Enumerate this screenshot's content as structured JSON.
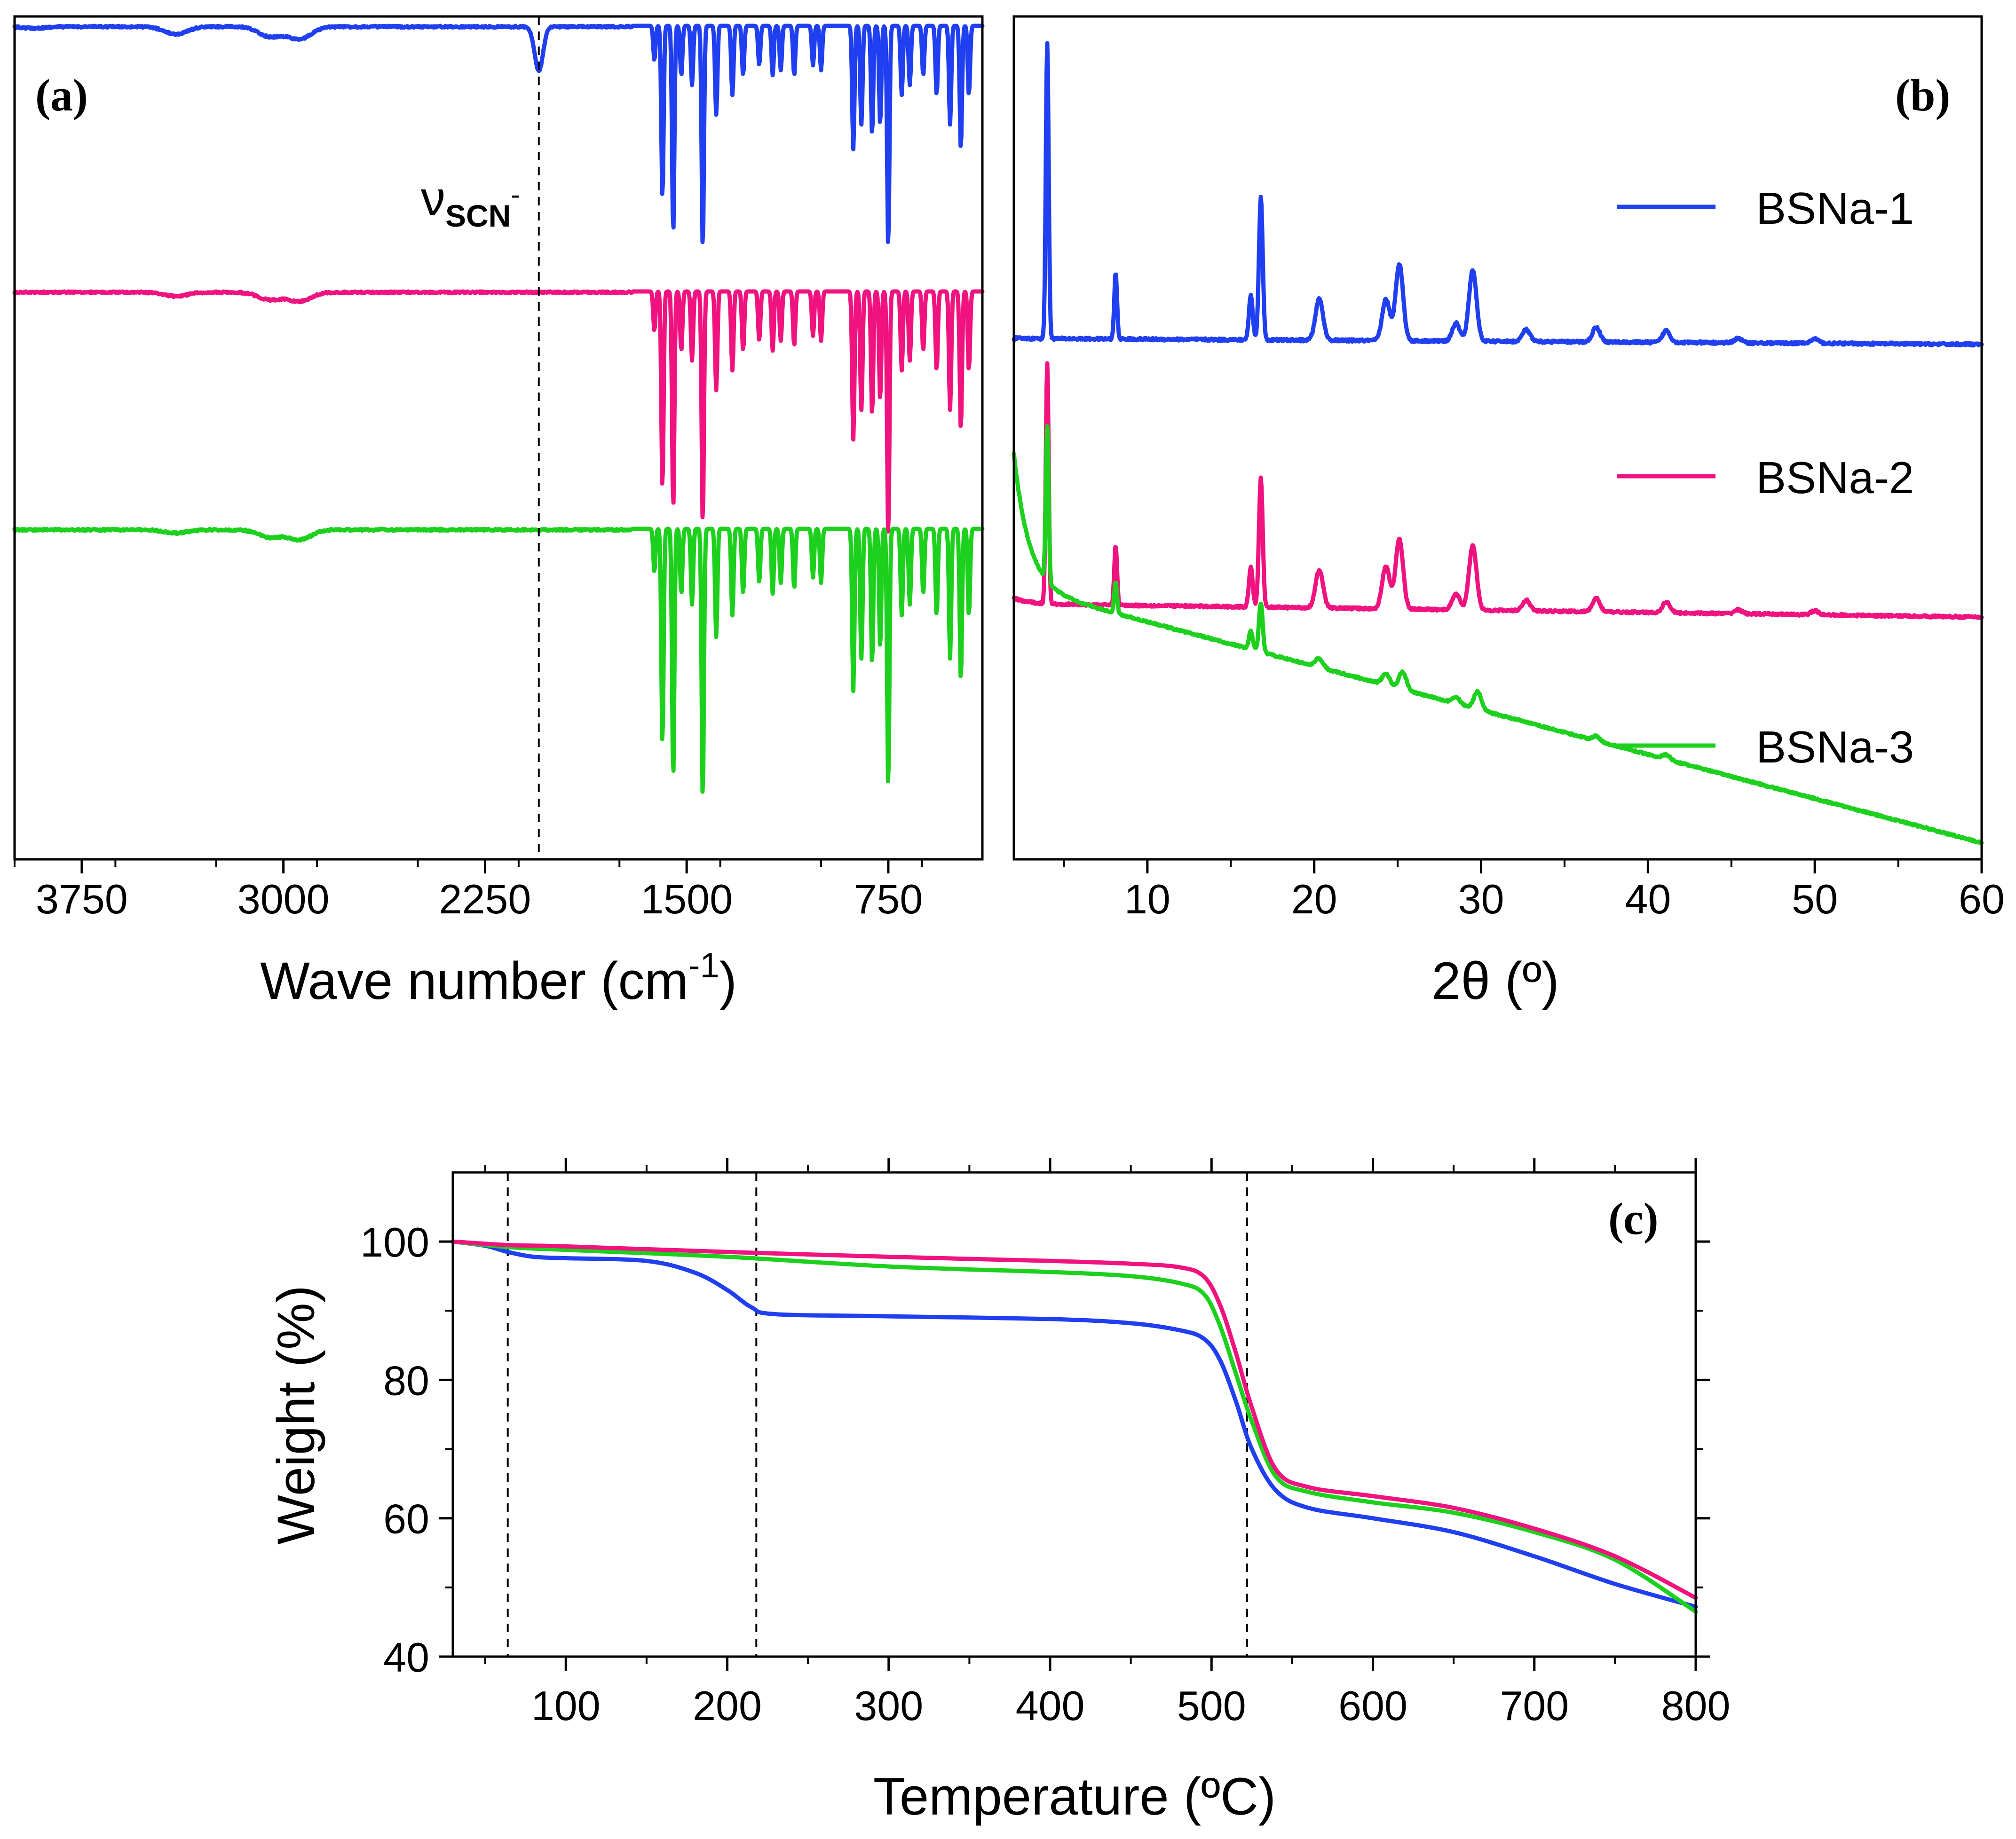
{
  "colors": {
    "BSNa-1": "#1f3ff0",
    "BSNa-2": "#f0137f",
    "BSNa-3": "#1ed01e"
  },
  "chart_data": [
    {
      "id": "a",
      "type": "line",
      "panel_label": "(a)",
      "xlabel_main": "Wave number (cm",
      "xlabel_sup": "-1",
      "xlabel_close": ")",
      "ylabel": "",
      "x_direction": "reversed",
      "xlim": [
        4000,
        400
      ],
      "xticks": [
        "3750",
        "3000",
        "2250",
        "1500",
        "750"
      ],
      "xtick_values": [
        3750,
        3000,
        2250,
        1500,
        750
      ],
      "annotation": {
        "base": "ν",
        "sub": "SCN",
        "sup": "-",
        "at_x": 2050
      },
      "guide_x": [
        2050
      ],
      "y_units": "arbitrary transmittance (stacked, offset)",
      "series": [
        {
          "name": "BSNa-1",
          "color_key": "BSNa-1",
          "baseline": 100,
          "bands": [
            [
              3930,
              0.3
            ],
            [
              3400,
              1.5
            ],
            [
              3050,
              2.0
            ],
            [
              2940,
              2.5
            ],
            [
              2050,
              9
            ],
            [
              1620,
              7
            ],
            [
              1590,
              35
            ],
            [
              1550,
              42
            ],
            [
              1520,
              10
            ],
            [
              1480,
              12
            ],
            [
              1440,
              45
            ],
            [
              1390,
              18
            ],
            [
              1330,
              14
            ],
            [
              1290,
              10
            ],
            [
              1230,
              8
            ],
            [
              1180,
              10
            ],
            [
              1150,
              9
            ],
            [
              1100,
              10
            ],
            [
              1030,
              8
            ],
            [
              1000,
              9
            ],
            [
              880,
              25
            ],
            [
              850,
              20
            ],
            [
              810,
              22
            ],
            [
              780,
              20
            ],
            [
              750,
              45
            ],
            [
              700,
              14
            ],
            [
              670,
              12
            ],
            [
              620,
              10
            ],
            [
              570,
              14
            ],
            [
              520,
              20
            ],
            [
              480,
              25
            ],
            [
              450,
              14
            ]
          ]
        },
        {
          "name": "BSNa-2",
          "color_key": "BSNa-2",
          "baseline": 100,
          "bands": [
            [
              3400,
              0.8
            ],
            [
              3050,
              1.5
            ],
            [
              2940,
              1.8
            ],
            [
              1620,
              8
            ],
            [
              1590,
              40
            ],
            [
              1550,
              44
            ],
            [
              1520,
              12
            ],
            [
              1480,
              14
            ],
            [
              1440,
              47
            ],
            [
              1390,
              20
            ],
            [
              1330,
              16
            ],
            [
              1290,
              12
            ],
            [
              1230,
              10
            ],
            [
              1180,
              12
            ],
            [
              1150,
              10
            ],
            [
              1100,
              11
            ],
            [
              1030,
              9
            ],
            [
              1000,
              10
            ],
            [
              880,
              30
            ],
            [
              850,
              24
            ],
            [
              810,
              25
            ],
            [
              780,
              22
            ],
            [
              750,
              50
            ],
            [
              700,
              16
            ],
            [
              670,
              14
            ],
            [
              620,
              12
            ],
            [
              570,
              16
            ],
            [
              520,
              24
            ],
            [
              480,
              28
            ],
            [
              450,
              16
            ]
          ]
        },
        {
          "name": "BSNa-3",
          "color_key": "BSNa-3",
          "baseline": 100,
          "bands": [
            [
              3400,
              0.6
            ],
            [
              3050,
              1.4
            ],
            [
              2940,
              1.8
            ],
            [
              1620,
              8
            ],
            [
              1590,
              40
            ],
            [
              1550,
              46
            ],
            [
              1520,
              12
            ],
            [
              1480,
              14
            ],
            [
              1440,
              50
            ],
            [
              1390,
              20
            ],
            [
              1330,
              16
            ],
            [
              1290,
              12
            ],
            [
              1230,
              10
            ],
            [
              1180,
              12
            ],
            [
              1150,
              10
            ],
            [
              1100,
              11
            ],
            [
              1030,
              9
            ],
            [
              1000,
              10
            ],
            [
              880,
              30
            ],
            [
              850,
              24
            ],
            [
              810,
              25
            ],
            [
              780,
              22
            ],
            [
              750,
              48
            ],
            [
              700,
              16
            ],
            [
              670,
              14
            ],
            [
              620,
              12
            ],
            [
              570,
              16
            ],
            [
              520,
              24
            ],
            [
              480,
              28
            ],
            [
              450,
              16
            ]
          ]
        }
      ]
    },
    {
      "id": "b",
      "type": "line",
      "panel_label": "(b)",
      "xlabel": "2θ (º)",
      "ylabel": "",
      "xlim": [
        2,
        60
      ],
      "xticks": [
        "10",
        "20",
        "30",
        "40",
        "50",
        "60"
      ],
      "xtick_values": [
        10,
        20,
        30,
        40,
        50,
        60
      ],
      "y_units": "intensity (a.u., stacked, offset)",
      "legend": [
        "BSNa-1",
        "BSNa-2",
        "BSNa-3"
      ],
      "series": [
        {
          "name": "BSNa-1",
          "color_key": "BSNa-1",
          "start": 2,
          "end": 0,
          "low_angle": 0,
          "peaks": [
            [
              4.0,
              100
            ],
            [
              8.1,
              22
            ],
            [
              16.2,
              15
            ],
            [
              16.8,
              48
            ],
            [
              20.3,
              14
            ],
            [
              24.3,
              14
            ],
            [
              25.1,
              26
            ],
            [
              28.5,
              6
            ],
            [
              29.5,
              24
            ],
            [
              32.7,
              4
            ],
            [
              36.9,
              5
            ],
            [
              41.1,
              4
            ],
            [
              45.4,
              1.5
            ],
            [
              50,
              1.5
            ]
          ]
        },
        {
          "name": "BSNa-2",
          "color_key": "BSNa-2",
          "start": 5,
          "end": 0,
          "low_angle": 2,
          "peaks": [
            [
              4.0,
              90
            ],
            [
              8.1,
              22
            ],
            [
              16.2,
              15
            ],
            [
              16.8,
              48
            ],
            [
              20.3,
              14
            ],
            [
              24.3,
              16
            ],
            [
              25.1,
              26
            ],
            [
              28.5,
              6
            ],
            [
              29.5,
              24
            ],
            [
              32.7,
              4
            ],
            [
              36.9,
              5
            ],
            [
              41.1,
              4
            ],
            [
              45.4,
              1.5
            ],
            [
              50,
              1.5
            ]
          ]
        },
        {
          "name": "BSNa-3",
          "color_key": "BSNa-3",
          "start": 115,
          "end": -1,
          "low_angle": 60,
          "peaks": [
            [
              4.0,
              70
            ],
            [
              8.1,
              14
            ],
            [
              16.2,
              8
            ],
            [
              16.8,
              22
            ],
            [
              20.3,
              4
            ],
            [
              24.3,
              5
            ],
            [
              25.3,
              8
            ],
            [
              28.5,
              3
            ],
            [
              29.8,
              8
            ],
            [
              36.9,
              2
            ],
            [
              41.1,
              2
            ]
          ]
        }
      ]
    },
    {
      "id": "c",
      "type": "line",
      "panel_label": "(c)",
      "xlabel": "Temperature (ºC)",
      "ylabel": "Weight (%)",
      "xlim": [
        30,
        800
      ],
      "ylim": [
        40,
        110
      ],
      "xticks": [
        "100",
        "200",
        "300",
        "400",
        "500",
        "600",
        "700",
        "800"
      ],
      "xtick_values": [
        100,
        200,
        300,
        400,
        500,
        600,
        700,
        800
      ],
      "yticks": [
        "40",
        "60",
        "80",
        "100"
      ],
      "ytick_values": [
        40,
        60,
        80,
        100
      ],
      "guide_x": [
        64,
        218,
        522
      ],
      "series": [
        {
          "name": "BSNa-1",
          "color_key": "BSNa-1",
          "x": [
            30,
            50,
            64,
            80,
            100,
            150,
            180,
            200,
            215,
            230,
            300,
            400,
            450,
            480,
            495,
            505,
            515,
            525,
            540,
            560,
            600,
            650,
            700,
            750,
            800
          ],
          "y": [
            100,
            99.4,
            98.5,
            97.8,
            97.6,
            97.2,
            95.5,
            93,
            90.5,
            89.5,
            89.2,
            88.8,
            88.2,
            87.2,
            86,
            83,
            77,
            70,
            64,
            61.5,
            60,
            58,
            54.5,
            50.5,
            47.2
          ]
        },
        {
          "name": "BSNa-2",
          "color_key": "BSNa-2",
          "x": [
            30,
            64,
            100,
            200,
            300,
            400,
            450,
            480,
            495,
            505,
            515,
            525,
            540,
            560,
            600,
            650,
            700,
            750,
            800
          ],
          "y": [
            100,
            99.5,
            99.3,
            98.5,
            97.8,
            97.2,
            96.8,
            96.3,
            95,
            91,
            84,
            76,
            67,
            64.5,
            63.2,
            61.5,
            58.5,
            54.5,
            48.5
          ]
        },
        {
          "name": "BSNa-3",
          "color_key": "BSNa-3",
          "x": [
            30,
            64,
            100,
            200,
            300,
            400,
            450,
            480,
            495,
            505,
            515,
            525,
            540,
            560,
            600,
            650,
            700,
            750,
            800
          ],
          "y": [
            100,
            99.2,
            98.8,
            97.8,
            96.4,
            95.6,
            95,
            94,
            92.5,
            88,
            81,
            74,
            66,
            63.8,
            62.3,
            60.8,
            58,
            54,
            46.5
          ]
        }
      ]
    }
  ]
}
